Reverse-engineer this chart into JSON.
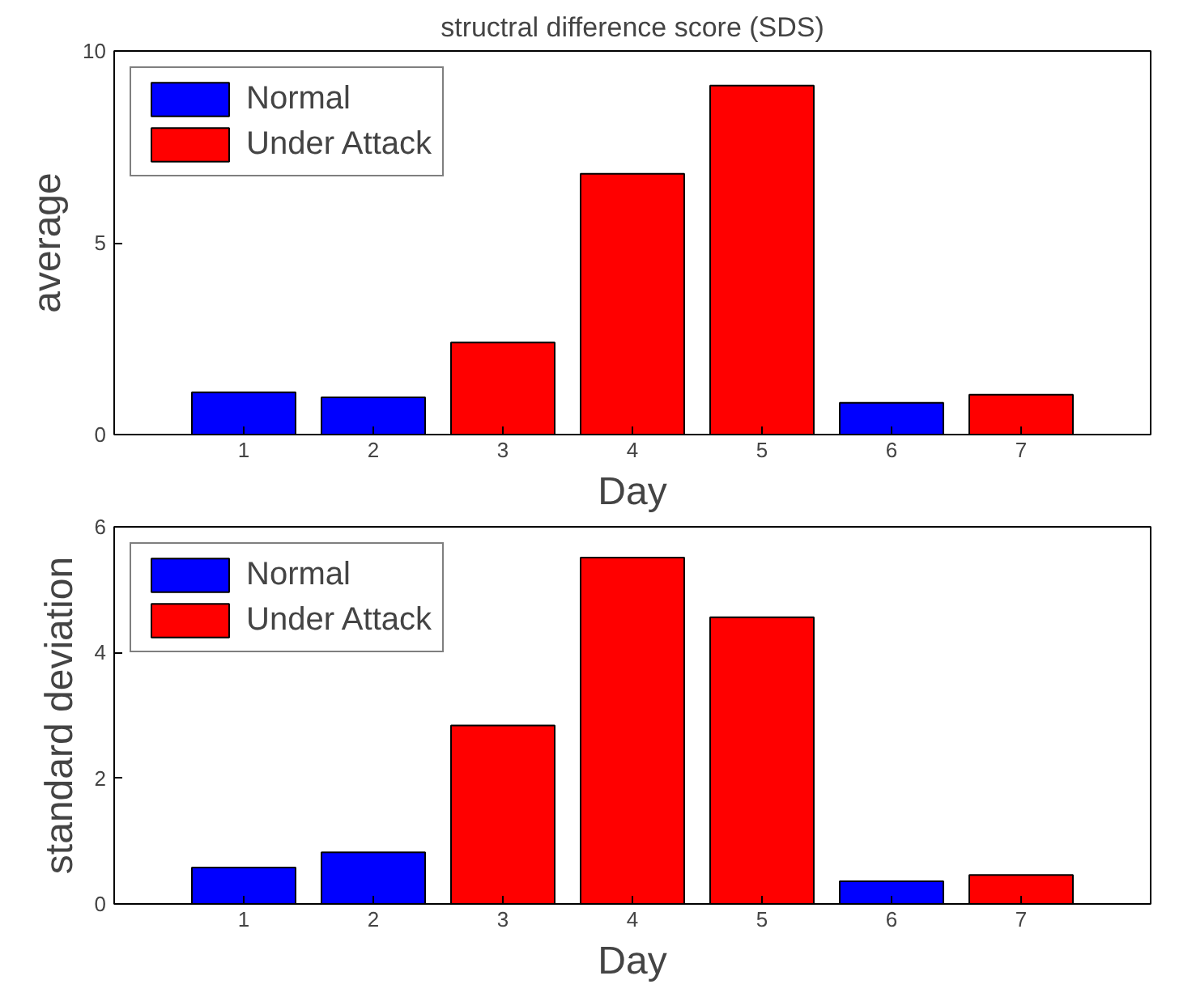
{
  "chart_data": [
    {
      "type": "bar",
      "title": "structral difference score (SDS)",
      "xlabel": "Day",
      "ylabel": "average",
      "x": [
        1,
        2,
        3,
        4,
        5,
        6,
        7
      ],
      "xlim": [
        0,
        8
      ],
      "xticks": [
        1,
        2,
        3,
        4,
        5,
        6,
        7
      ],
      "ylim": [
        0,
        10
      ],
      "yticks": [
        0,
        5,
        10
      ],
      "grid": false,
      "legend": "top left",
      "series": [
        {
          "name": "Normal",
          "color": "#0000ff",
          "values": [
            1.1,
            0.97,
            null,
            null,
            null,
            0.83,
            null
          ]
        },
        {
          "name": "Under Attack",
          "color": "#ff0000",
          "values": [
            null,
            null,
            2.4,
            6.8,
            9.1,
            null,
            1.04
          ]
        }
      ]
    },
    {
      "type": "bar",
      "xlabel": "Day",
      "ylabel": "standard deviation",
      "x": [
        1,
        2,
        3,
        4,
        5,
        6,
        7
      ],
      "xlim": [
        0,
        8
      ],
      "xticks": [
        1,
        2,
        3,
        4,
        5,
        6,
        7
      ],
      "ylim": [
        0,
        6
      ],
      "yticks": [
        0,
        2,
        4,
        6
      ],
      "grid": false,
      "legend": "top left",
      "series": [
        {
          "name": "Normal",
          "color": "#0000ff",
          "values": [
            0.58,
            0.82,
            null,
            null,
            null,
            0.36,
            null
          ]
        },
        {
          "name": "Under Attack",
          "color": "#ff0000",
          "values": [
            null,
            null,
            2.84,
            5.51,
            4.56,
            null,
            0.46
          ]
        }
      ]
    }
  ]
}
